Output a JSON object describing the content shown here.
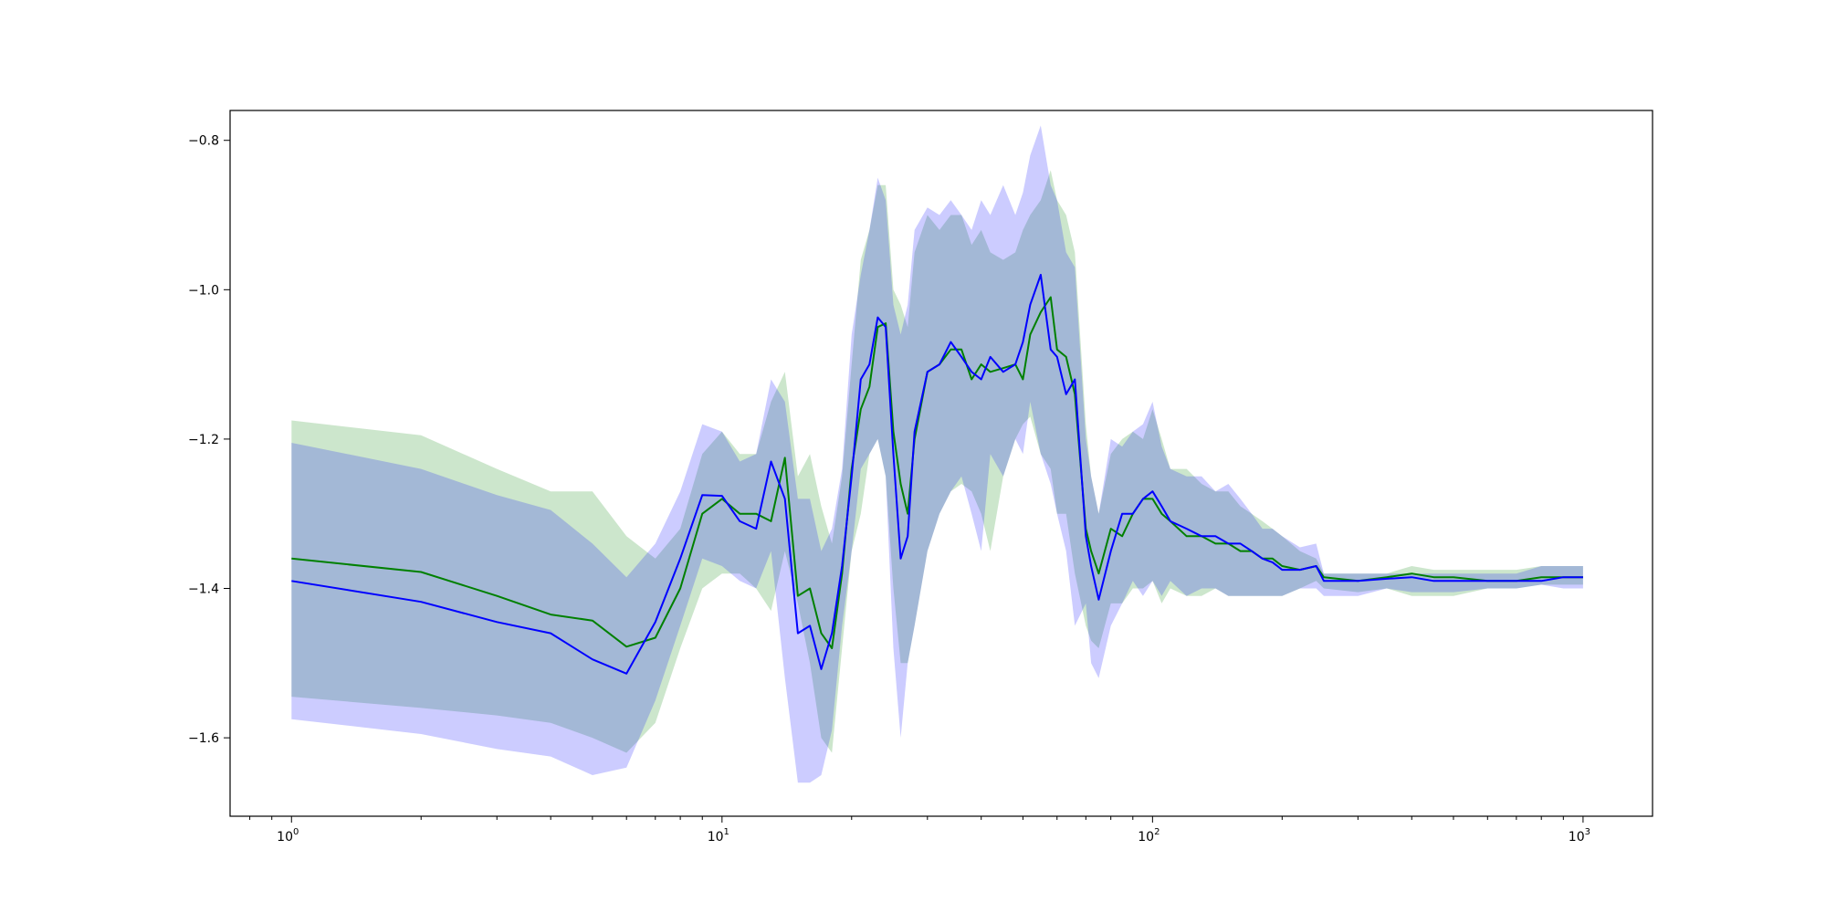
{
  "chart_data": {
    "type": "line",
    "title": "",
    "xlabel": "",
    "ylabel": "",
    "x_scale": "log",
    "xlim": [
      0.72,
      1450
    ],
    "ylim": [
      -1.705,
      -0.76
    ],
    "grid": false,
    "legend": "none",
    "x_ticks": [
      {
        "value": 1,
        "base": "10",
        "exp": "0"
      },
      {
        "value": 10,
        "base": "10",
        "exp": "1"
      },
      {
        "value": 100,
        "base": "10",
        "exp": "2"
      },
      {
        "value": 1000,
        "base": "10",
        "exp": "3"
      }
    ],
    "y_ticks": [
      {
        "value": -0.8,
        "label": "−0.8"
      },
      {
        "value": -1.0,
        "label": "−1.0"
      },
      {
        "value": -1.2,
        "label": "−1.2"
      },
      {
        "value": -1.4,
        "label": "−1.4"
      },
      {
        "value": -1.6,
        "label": "−1.6"
      }
    ],
    "colors": {
      "green_line": "#008000",
      "green_band": "#cce5cc",
      "blue_line": "#0000ff",
      "blue_band": "#ccccff",
      "overlap_band": "#9eb1d4"
    },
    "x": [
      1,
      2,
      3,
      4,
      5,
      6,
      7,
      8,
      9,
      10,
      11,
      12,
      13,
      14,
      15,
      16,
      17,
      18,
      19,
      20,
      21,
      22,
      23,
      24,
      25,
      26,
      27,
      28,
      30,
      32,
      34,
      36,
      38,
      40,
      42,
      45,
      48,
      50,
      52,
      55,
      58,
      60,
      63,
      66,
      70,
      72,
      75,
      80,
      85,
      90,
      95,
      100,
      105,
      110,
      120,
      130,
      140,
      150,
      160,
      170,
      180,
      190,
      200,
      220,
      240,
      250,
      300,
      350,
      400,
      450,
      500,
      600,
      700,
      800,
      900,
      1000
    ],
    "series": [
      {
        "color_key": "green",
        "mean": [
          -1.36,
          -1.378,
          -1.41,
          -1.435,
          -1.443,
          -1.478,
          -1.466,
          -1.4,
          -1.3,
          -1.28,
          -1.3,
          -1.3,
          -1.31,
          -1.225,
          -1.41,
          -1.4,
          -1.46,
          -1.48,
          -1.38,
          -1.24,
          -1.16,
          -1.13,
          -1.05,
          -1.045,
          -1.19,
          -1.26,
          -1.3,
          -1.2,
          -1.11,
          -1.1,
          -1.08,
          -1.08,
          -1.12,
          -1.1,
          -1.11,
          -1.105,
          -1.1,
          -1.12,
          -1.06,
          -1.03,
          -1.01,
          -1.08,
          -1.09,
          -1.14,
          -1.32,
          -1.35,
          -1.38,
          -1.32,
          -1.33,
          -1.3,
          -1.28,
          -1.28,
          -1.3,
          -1.31,
          -1.33,
          -1.33,
          -1.34,
          -1.34,
          -1.35,
          -1.35,
          -1.36,
          -1.36,
          -1.37,
          -1.375,
          -1.37,
          -1.385,
          -1.39,
          -1.385,
          -1.38,
          -1.385,
          -1.385,
          -1.39,
          -1.39,
          -1.385,
          -1.385,
          -1.385
        ],
        "lower": [
          -1.545,
          -1.56,
          -1.57,
          -1.58,
          -1.6,
          -1.62,
          -1.58,
          -1.48,
          -1.4,
          -1.38,
          -1.38,
          -1.4,
          -1.43,
          -1.35,
          -1.42,
          -1.5,
          -1.6,
          -1.62,
          -1.48,
          -1.35,
          -1.3,
          -1.22,
          -1.2,
          -1.25,
          -1.4,
          -1.5,
          -1.5,
          -1.45,
          -1.35,
          -1.3,
          -1.27,
          -1.26,
          -1.27,
          -1.3,
          -1.35,
          -1.25,
          -1.2,
          -1.18,
          -1.17,
          -1.22,
          -1.24,
          -1.3,
          -1.3,
          -1.38,
          -1.45,
          -1.47,
          -1.48,
          -1.42,
          -1.42,
          -1.4,
          -1.4,
          -1.39,
          -1.42,
          -1.4,
          -1.41,
          -1.41,
          -1.4,
          -1.41,
          -1.41,
          -1.41,
          -1.41,
          -1.41,
          -1.41,
          -1.4,
          -1.39,
          -1.4,
          -1.405,
          -1.4,
          -1.41,
          -1.41,
          -1.41,
          -1.4,
          -1.4,
          -1.395,
          -1.395,
          -1.395
        ],
        "upper": [
          -1.175,
          -1.195,
          -1.24,
          -1.27,
          -1.27,
          -1.33,
          -1.36,
          -1.32,
          -1.22,
          -1.19,
          -1.22,
          -1.22,
          -1.15,
          -1.11,
          -1.25,
          -1.22,
          -1.29,
          -1.34,
          -1.25,
          -1.1,
          -0.96,
          -0.92,
          -0.86,
          -0.86,
          -1.0,
          -1.02,
          -1.05,
          -0.95,
          -0.9,
          -0.92,
          -0.9,
          -0.9,
          -0.94,
          -0.92,
          -0.95,
          -0.96,
          -0.95,
          -0.92,
          -0.9,
          -0.88,
          -0.84,
          -0.88,
          -0.9,
          -0.95,
          -1.18,
          -1.25,
          -1.3,
          -1.22,
          -1.2,
          -1.19,
          -1.2,
          -1.16,
          -1.2,
          -1.24,
          -1.24,
          -1.26,
          -1.27,
          -1.27,
          -1.29,
          -1.3,
          -1.31,
          -1.32,
          -1.33,
          -1.35,
          -1.36,
          -1.38,
          -1.38,
          -1.38,
          -1.37,
          -1.375,
          -1.375,
          -1.375,
          -1.375,
          -1.37,
          -1.37,
          -1.37
        ]
      },
      {
        "color_key": "blue",
        "mean": [
          -1.39,
          -1.418,
          -1.445,
          -1.46,
          -1.495,
          -1.514,
          -1.445,
          -1.36,
          -1.275,
          -1.276,
          -1.31,
          -1.32,
          -1.23,
          -1.28,
          -1.46,
          -1.45,
          -1.508,
          -1.46,
          -1.37,
          -1.25,
          -1.12,
          -1.1,
          -1.037,
          -1.05,
          -1.22,
          -1.36,
          -1.33,
          -1.19,
          -1.11,
          -1.1,
          -1.07,
          -1.09,
          -1.11,
          -1.12,
          -1.09,
          -1.11,
          -1.1,
          -1.07,
          -1.02,
          -0.98,
          -1.08,
          -1.09,
          -1.14,
          -1.12,
          -1.33,
          -1.37,
          -1.415,
          -1.35,
          -1.3,
          -1.3,
          -1.28,
          -1.27,
          -1.29,
          -1.31,
          -1.32,
          -1.33,
          -1.33,
          -1.34,
          -1.34,
          -1.35,
          -1.36,
          -1.365,
          -1.375,
          -1.375,
          -1.37,
          -1.39,
          -1.39,
          -1.387,
          -1.385,
          -1.39,
          -1.39,
          -1.39,
          -1.39,
          -1.39,
          -1.385,
          -1.385
        ],
        "lower": [
          -1.575,
          -1.595,
          -1.615,
          -1.625,
          -1.65,
          -1.64,
          -1.55,
          -1.45,
          -1.36,
          -1.37,
          -1.39,
          -1.4,
          -1.35,
          -1.52,
          -1.66,
          -1.66,
          -1.65,
          -1.59,
          -1.45,
          -1.35,
          -1.24,
          -1.22,
          -1.2,
          -1.25,
          -1.48,
          -1.6,
          -1.5,
          -1.45,
          -1.35,
          -1.3,
          -1.27,
          -1.25,
          -1.3,
          -1.35,
          -1.22,
          -1.25,
          -1.2,
          -1.22,
          -1.15,
          -1.22,
          -1.26,
          -1.3,
          -1.35,
          -1.45,
          -1.42,
          -1.5,
          -1.52,
          -1.45,
          -1.42,
          -1.39,
          -1.41,
          -1.39,
          -1.41,
          -1.39,
          -1.41,
          -1.4,
          -1.4,
          -1.41,
          -1.41,
          -1.41,
          -1.41,
          -1.41,
          -1.41,
          -1.4,
          -1.4,
          -1.41,
          -1.41,
          -1.4,
          -1.405,
          -1.405,
          -1.405,
          -1.4,
          -1.4,
          -1.395,
          -1.4,
          -1.4
        ],
        "upper": [
          -1.205,
          -1.24,
          -1.275,
          -1.295,
          -1.34,
          -1.385,
          -1.34,
          -1.27,
          -1.18,
          -1.19,
          -1.23,
          -1.22,
          -1.12,
          -1.15,
          -1.28,
          -1.28,
          -1.35,
          -1.32,
          -1.24,
          -1.06,
          -0.98,
          -0.92,
          -0.85,
          -0.88,
          -1.02,
          -1.06,
          -1.02,
          -0.92,
          -0.89,
          -0.9,
          -0.88,
          -0.9,
          -0.92,
          -0.88,
          -0.9,
          -0.86,
          -0.9,
          -0.87,
          -0.82,
          -0.78,
          -0.86,
          -0.88,
          -0.95,
          -0.97,
          -1.2,
          -1.25,
          -1.3,
          -1.2,
          -1.21,
          -1.19,
          -1.18,
          -1.15,
          -1.21,
          -1.24,
          -1.25,
          -1.25,
          -1.27,
          -1.26,
          -1.28,
          -1.3,
          -1.32,
          -1.32,
          -1.33,
          -1.345,
          -1.34,
          -1.38,
          -1.38,
          -1.38,
          -1.38,
          -1.38,
          -1.38,
          -1.38,
          -1.38,
          -1.37,
          -1.37,
          -1.37
        ]
      }
    ]
  }
}
